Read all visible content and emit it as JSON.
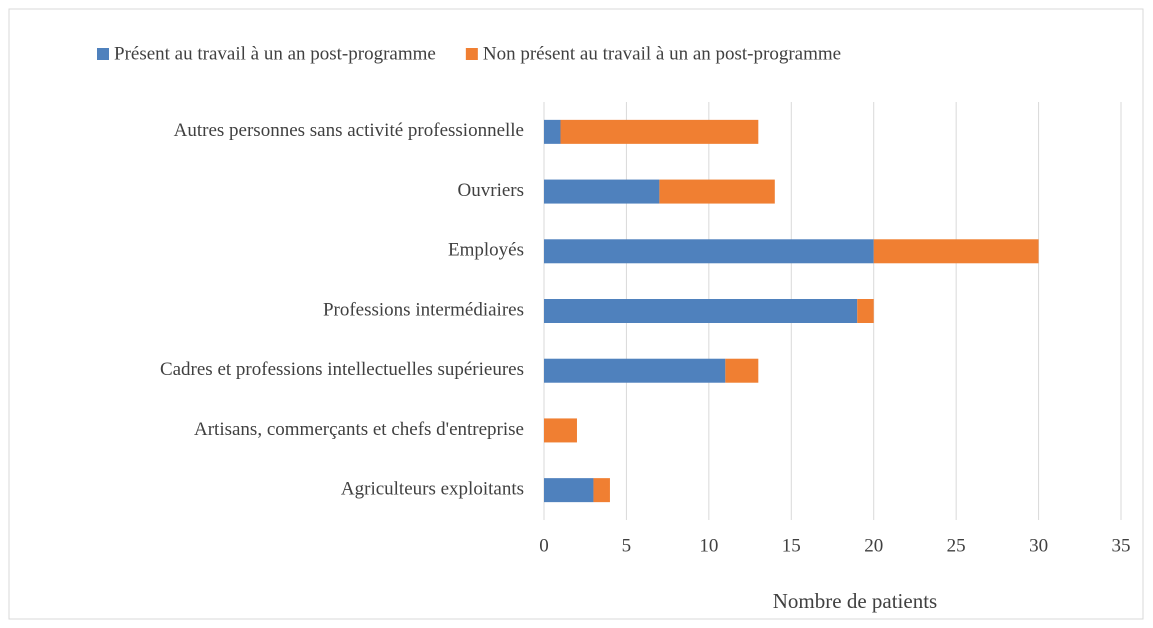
{
  "chart_data": {
    "type": "hbar_stacked",
    "categories": [
      "Agriculteurs exploitants",
      "Artisans, commerçants et chefs d'entreprise",
      "Cadres et professions intellectuelles supérieures",
      "Professions intermédiaires",
      "Employés",
      "Ouvriers",
      "Autres personnes sans activité professionnelle"
    ],
    "series": [
      {
        "name": "Présent au travail à un an post-programme",
        "color": "#4f81bd",
        "values": [
          3,
          0,
          11,
          19,
          20,
          7,
          1
        ]
      },
      {
        "name": "Non présent au travail à un an post-programme",
        "color": "#f07f32",
        "values": [
          1,
          2,
          2,
          1,
          10,
          7,
          12
        ]
      }
    ],
    "xlabel": "Nombre de patients",
    "xlim": [
      0,
      35
    ],
    "xticks": [
      0,
      5,
      10,
      15,
      20,
      25,
      30,
      35
    ],
    "grid": true,
    "legend": "top"
  }
}
